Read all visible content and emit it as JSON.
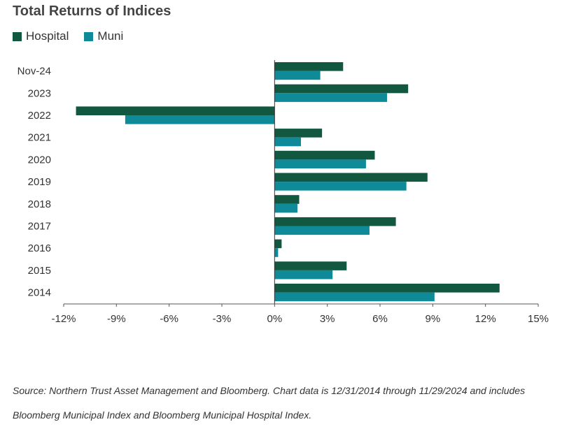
{
  "chart_data": {
    "type": "bar",
    "orientation": "horizontal",
    "title": "Total Returns of Indices",
    "categories": [
      "Nov-24",
      "2023",
      "2022",
      "2021",
      "2020",
      "2019",
      "2018",
      "2017",
      "2016",
      "2015",
      "2014"
    ],
    "series": [
      {
        "name": "Hospital",
        "color": "#12573f",
        "values": [
          3.9,
          7.6,
          -11.3,
          2.7,
          5.7,
          8.7,
          1.4,
          6.9,
          0.4,
          4.1,
          12.8
        ]
      },
      {
        "name": "Muni",
        "color": "#0e8a99",
        "values": [
          2.6,
          6.4,
          -8.5,
          1.5,
          5.2,
          7.5,
          1.3,
          5.4,
          0.2,
          3.3,
          9.1
        ]
      }
    ],
    "xlim": [
      -12,
      15
    ],
    "xticks": [
      -12,
      -9,
      -6,
      -3,
      0,
      3,
      6,
      9,
      12,
      15
    ],
    "xtick_labels": [
      "-12%",
      "-9%",
      "-6%",
      "-3%",
      "0%",
      "3%",
      "6%",
      "9%",
      "12%",
      "15%"
    ],
    "legend_position": "top-left",
    "grid": false
  },
  "source_lines": [
    "Source: Northern Trust Asset Management and Bloomberg. Chart data is 12/31/2014 through 11/29/2024 and includes",
    "Bloomberg Municipal Index and Bloomberg Municipal Hospital Index."
  ]
}
